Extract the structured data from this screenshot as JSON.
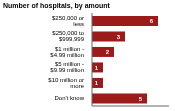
{
  "chart_data": {
    "type": "bar",
    "title": "Number of hospitals, by amount",
    "orientation": "horizontal",
    "categories": [
      "$250,000 or less",
      "$250,000 to $999,999",
      "$1 million - $4.99 million",
      "$5 million - $9.99 million",
      "$10 million or more",
      "Don't know"
    ],
    "values": [
      6,
      3,
      2,
      1,
      1,
      5
    ],
    "color": "#9b1b1b",
    "xlim": [
      0,
      7
    ],
    "data_labels": true,
    "tick_labels": "y",
    "grid": false
  }
}
